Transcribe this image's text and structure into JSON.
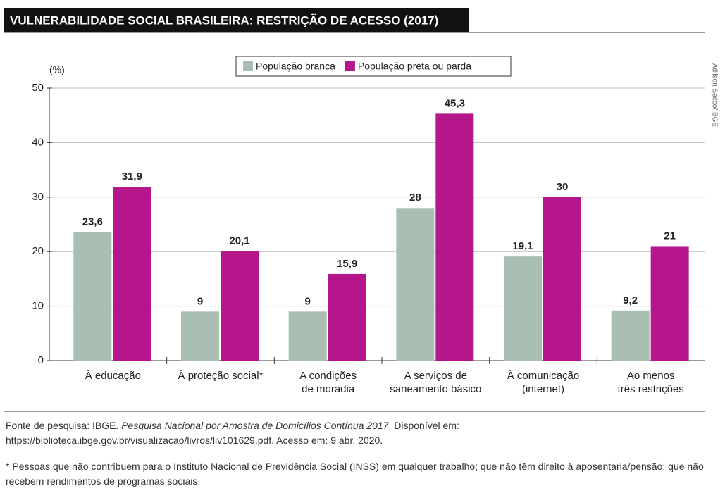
{
  "chart_data": {
    "type": "bar",
    "title": "VULNERABILIDADE SOCIAL BRASILEIRA: RESTRIÇÃO DE ACESSO (2017)",
    "y_label": "(%)",
    "credit": "Adilson Secco/IBGE",
    "categories": [
      "À educação",
      "À proteção social*",
      "A condições\nde moradia",
      "A serviços de\nsaneamento básico",
      "À comunicação\n(internet)",
      "Ao menos\ntrês restrições"
    ],
    "series": [
      {
        "name": "População branca",
        "color": "#a9bfb3",
        "values": [
          23.6,
          9,
          9,
          28,
          19.1,
          9.2
        ],
        "value_labels": [
          "23,6",
          "9",
          "9",
          "28",
          "19,1",
          "9,2"
        ]
      },
      {
        "name": "População preta ou parda",
        "color": "#b5168b",
        "values": [
          31.9,
          20.1,
          15.9,
          45.3,
          30,
          21
        ],
        "value_labels": [
          "31,9",
          "20,1",
          "15,9",
          "45,3",
          "30",
          "21"
        ]
      }
    ],
    "ylim": [
      0,
      50
    ],
    "yticks": [
      0,
      10,
      20,
      30,
      40,
      50
    ],
    "grid": true
  },
  "source": {
    "prefix": "Fonte de pesquisa: IBGE. ",
    "title": "Pesquisa Nacional por Amostra de Domicílios Contínua 2017",
    "suffix": ". Disponível em: https://biblioteca.ibge.gov.br/visualizacao/livros/liv101629.pdf. Acesso em: 9 abr. 2020."
  },
  "footnote": "* Pessoas que não contribuem para o Instituto Nacional de Previdência Social (INSS) em qualquer trabalho; que não têm direito à aposentaria/pensão; que não recebem rendimentos de programas sociais."
}
